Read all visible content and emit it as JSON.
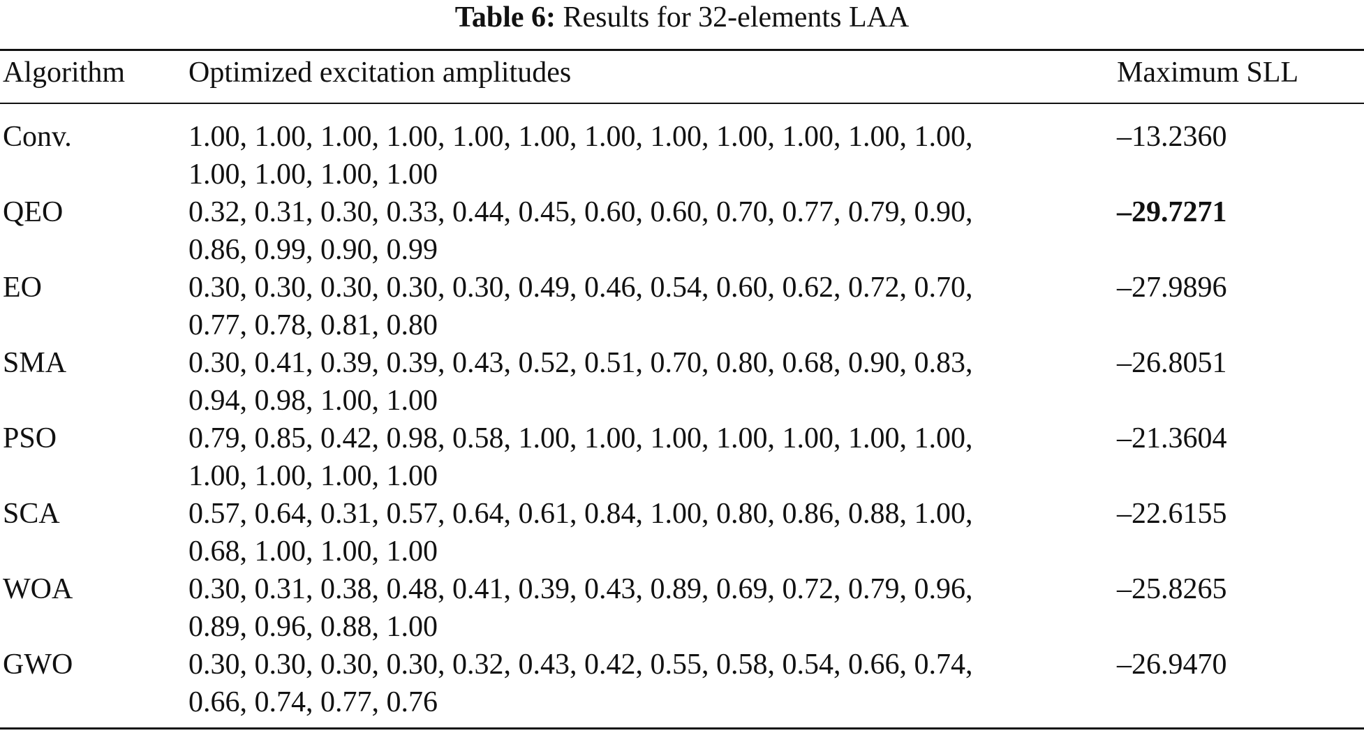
{
  "caption": {
    "label": "Table 6:",
    "title": "Results for 32-elements LAA"
  },
  "headers": {
    "algorithm": "Algorithm",
    "amplitudes": "Optimized excitation amplitudes",
    "sll": "Maximum SLL"
  },
  "rows": [
    {
      "algorithm": "Conv.",
      "amplitudes_line1": "1.00, 1.00, 1.00, 1.00, 1.00, 1.00, 1.00, 1.00, 1.00, 1.00, 1.00, 1.00,",
      "amplitudes_line2": "1.00, 1.00, 1.00, 1.00",
      "sll": "–13.2360"
    },
    {
      "algorithm": "QEO",
      "amplitudes_line1": "0.32, 0.31, 0.30, 0.33, 0.44, 0.45, 0.60, 0.60, 0.70, 0.77, 0.79, 0.90,",
      "amplitudes_line2": "0.86, 0.99, 0.90, 0.99",
      "sll": "–29.7271"
    },
    {
      "algorithm": "EO",
      "amplitudes_line1": "0.30, 0.30, 0.30, 0.30, 0.30, 0.49, 0.46, 0.54, 0.60, 0.62, 0.72, 0.70,",
      "amplitudes_line2": "0.77, 0.78, 0.81, 0.80",
      "sll": "–27.9896"
    },
    {
      "algorithm": "SMA",
      "amplitudes_line1": "0.30, 0.41, 0.39, 0.39, 0.43, 0.52, 0.51, 0.70, 0.80, 0.68, 0.90, 0.83,",
      "amplitudes_line2": "0.94, 0.98, 1.00, 1.00",
      "sll": "–26.8051"
    },
    {
      "algorithm": "PSO",
      "amplitudes_line1": "0.79, 0.85, 0.42, 0.98, 0.58, 1.00, 1.00, 1.00, 1.00, 1.00, 1.00, 1.00,",
      "amplitudes_line2": "1.00, 1.00, 1.00, 1.00",
      "sll": "–21.3604"
    },
    {
      "algorithm": "SCA",
      "amplitudes_line1": "0.57, 0.64, 0.31, 0.57, 0.64, 0.61, 0.84, 1.00, 0.80, 0.86, 0.88, 1.00,",
      "amplitudes_line2": "0.68, 1.00, 1.00, 1.00",
      "sll": "–22.6155"
    },
    {
      "algorithm": "WOA",
      "amplitudes_line1": "0.30, 0.31, 0.38, 0.48, 0.41, 0.39, 0.43, 0.89, 0.69, 0.72, 0.79, 0.96,",
      "amplitudes_line2": "0.89, 0.96, 0.88, 1.00",
      "sll": "–25.8265"
    },
    {
      "algorithm": "GWO",
      "amplitudes_line1": "0.30, 0.30, 0.30, 0.30, 0.32, 0.43, 0.42, 0.55, 0.58, 0.54, 0.66, 0.74,",
      "amplitudes_line2": "0.66, 0.74, 0.77, 0.76",
      "sll": "–26.9470"
    }
  ]
}
